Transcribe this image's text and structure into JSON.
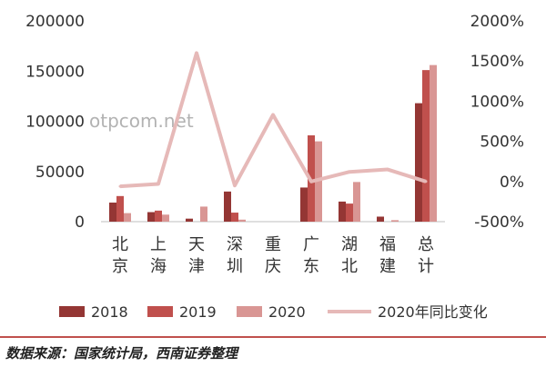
{
  "chart_data": {
    "type": "bar",
    "categories": [
      [
        "北",
        "京"
      ],
      [
        "上",
        "海"
      ],
      [
        "天",
        "津"
      ],
      [
        "深",
        "圳"
      ],
      [
        "重",
        "庆"
      ],
      [
        "广",
        "东"
      ],
      [
        "湖",
        "北"
      ],
      [
        "福",
        "建"
      ],
      [
        "总",
        "计"
      ]
    ],
    "series": [
      {
        "name": "2018",
        "values": [
          19000,
          9500,
          3000,
          30000,
          0,
          34000,
          20000,
          5000,
          118000
        ],
        "color": "#943634"
      },
      {
        "name": "2019",
        "values": [
          25500,
          11000,
          0,
          9000,
          0,
          86000,
          18000,
          0,
          151000
        ],
        "color": "#c0504d"
      },
      {
        "name": "2020",
        "values": [
          8500,
          7000,
          15000,
          2000,
          0,
          80000,
          39500,
          1500,
          156000
        ],
        "color": "#d99694"
      }
    ],
    "line": {
      "name": "2020年同比变化",
      "values": [
        -60,
        -30,
        1600,
        -50,
        830,
        0,
        120,
        150,
        0
      ],
      "color": "#e6b9b8"
    },
    "yleft": {
      "min": 0,
      "max": 200000,
      "ticks": [
        "0",
        "50000",
        "100000",
        "150000",
        "200000"
      ]
    },
    "yright": {
      "min": -500,
      "max": 2000,
      "ticks": [
        "-500%",
        "0%",
        "500%",
        "1000%",
        "1500%",
        "2000%"
      ]
    },
    "legend": [
      "2018",
      "2019",
      "2020",
      "2020年同比变化"
    ],
    "legend_position": "bottom"
  },
  "watermark": "otpcom.net",
  "source": "数据来源：国家统计局，西南证券整理"
}
